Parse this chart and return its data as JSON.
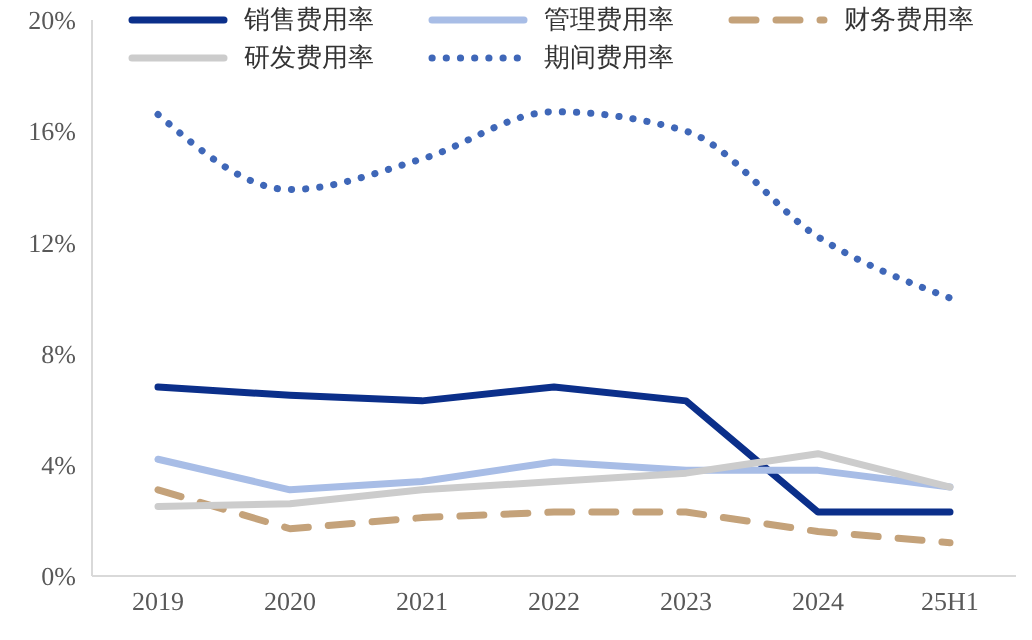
{
  "chart_data": {
    "type": "line",
    "categories": [
      "2019",
      "2020",
      "2021",
      "2022",
      "2023",
      "2024",
      "25H1"
    ],
    "series": [
      {
        "name": "销售费用率",
        "color": "#0b2f8a",
        "values": [
          6.8,
          6.5,
          6.3,
          6.8,
          6.3,
          2.3,
          2.3
        ]
      },
      {
        "name": "管理费用率",
        "color": "#a8bde6",
        "values": [
          4.2,
          3.1,
          3.4,
          4.1,
          3.8,
          3.8,
          3.2
        ]
      },
      {
        "name": "财务费用率",
        "color": "#c4a27a",
        "values": [
          3.1,
          1.7,
          2.1,
          2.3,
          2.3,
          1.6,
          1.2
        ],
        "line_style": "dashed"
      },
      {
        "name": "研发费用率",
        "color": "#cccccc",
        "values": [
          2.5,
          2.6,
          3.1,
          3.4,
          3.7,
          4.4,
          3.2
        ]
      },
      {
        "name": "期间费用率",
        "color": "#3f67b8",
        "values": [
          16.6,
          13.9,
          15.0,
          16.7,
          16.0,
          12.2,
          10.0
        ],
        "line_style": "dotted"
      }
    ],
    "ylim": [
      0,
      20
    ],
    "yticks": [
      {
        "value": 0,
        "label": "0%"
      },
      {
        "value": 4,
        "label": "4%"
      },
      {
        "value": 8,
        "label": "8%"
      },
      {
        "value": 12,
        "label": "12%"
      },
      {
        "value": 16,
        "label": "16%"
      },
      {
        "value": 20,
        "label": "20%"
      }
    ],
    "grid": false,
    "legend": "top",
    "marker": "none"
  }
}
